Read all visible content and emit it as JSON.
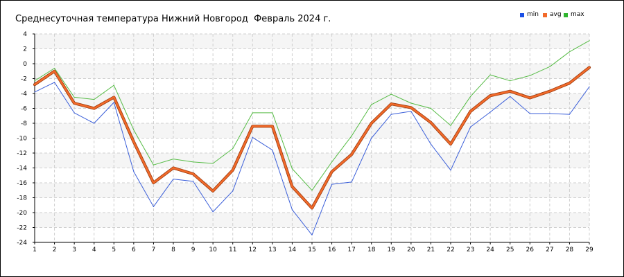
{
  "title": "Среднесуточная температура Нижний Новгород  Февраль 2024 г.",
  "legend": [
    {
      "label": "min",
      "color": "#1a4fe6"
    },
    {
      "label": "avg",
      "color": "#f26a2a"
    },
    {
      "label": "max",
      "color": "#2fb52f"
    }
  ],
  "chart_data": {
    "type": "line",
    "title": "Среднесуточная температура Нижний Новгород  Февраль 2024 г.",
    "xlabel": "",
    "ylabel": "",
    "x": [
      1,
      2,
      3,
      4,
      5,
      6,
      7,
      8,
      9,
      10,
      11,
      12,
      13,
      14,
      15,
      16,
      17,
      18,
      19,
      20,
      21,
      22,
      23,
      24,
      25,
      26,
      27,
      28,
      29
    ],
    "ylim": [
      -24,
      4
    ],
    "yticks": [
      4,
      2,
      0,
      -2,
      -4,
      -6,
      -8,
      -10,
      -12,
      -14,
      -16,
      -18,
      -20,
      -22,
      -24
    ],
    "grid": true,
    "legend_position": "top-right",
    "series": [
      {
        "name": "min",
        "color": "#3b5fd9",
        "values": [
          -3.8,
          -2.5,
          -6.6,
          -8.0,
          -5.2,
          -14.5,
          -19.2,
          -15.5,
          -15.8,
          -19.9,
          -17.1,
          -9.9,
          -11.6,
          -19.6,
          -23.0,
          -16.2,
          -15.9,
          -10.0,
          -6.8,
          -6.4,
          -10.8,
          -14.3,
          -8.5,
          -6.5,
          -4.4,
          -6.7,
          -6.7,
          -6.8,
          -3.1
        ]
      },
      {
        "name": "avg",
        "color": "#f26a2a",
        "values": [
          -2.8,
          -1.0,
          -5.3,
          -6.0,
          -4.5,
          -10.5,
          -16.0,
          -14.0,
          -14.8,
          -17.1,
          -14.3,
          -8.4,
          -8.4,
          -16.5,
          -19.4,
          -14.5,
          -12.2,
          -8.0,
          -5.4,
          -5.9,
          -7.9,
          -10.8,
          -6.4,
          -4.3,
          -3.7,
          -4.6,
          -3.7,
          -2.6,
          -0.5
        ]
      },
      {
        "name": "max",
        "color": "#55bb44",
        "values": [
          -2.3,
          -0.6,
          -4.5,
          -4.8,
          -2.9,
          -8.9,
          -13.6,
          -12.8,
          -13.2,
          -13.4,
          -11.4,
          -6.6,
          -6.6,
          -14.1,
          -17.0,
          -13.2,
          -9.7,
          -5.5,
          -4.1,
          -5.3,
          -6.0,
          -8.3,
          -4.4,
          -1.5,
          -2.3,
          -1.6,
          -0.4,
          1.6,
          3.1
        ]
      }
    ]
  }
}
